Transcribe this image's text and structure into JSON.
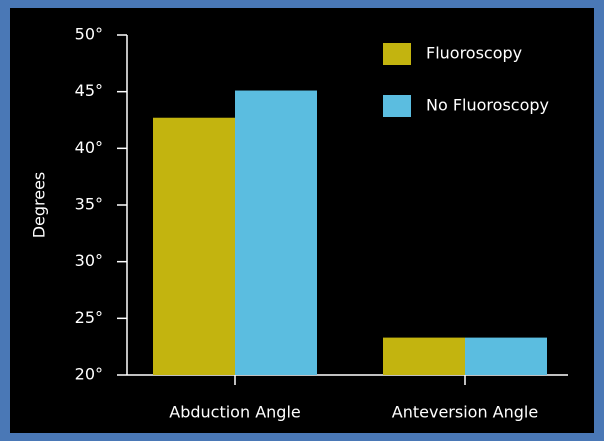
{
  "chart_data": {
    "type": "bar",
    "categories": [
      "Abduction Angle",
      "Anteversion Angle"
    ],
    "series": [
      {
        "name": "Fluoroscopy",
        "color": "#c3b40f",
        "values": [
          42.7,
          23.3
        ]
      },
      {
        "name": "No Fluoroscopy",
        "color": "#5bbde0",
        "values": [
          45.1,
          23.3
        ]
      }
    ],
    "ylabel": "Degrees",
    "ylim": [
      20,
      50
    ],
    "yticks": [
      {
        "value": 20,
        "label": "20°"
      },
      {
        "value": 25,
        "label": "25°"
      },
      {
        "value": 30,
        "label": "30°"
      },
      {
        "value": 35,
        "label": "35°"
      },
      {
        "value": 40,
        "label": "40°"
      },
      {
        "value": 45,
        "label": "45°"
      },
      {
        "value": 50,
        "label": "50°"
      }
    ],
    "legend": "upper right",
    "grid": false
  }
}
